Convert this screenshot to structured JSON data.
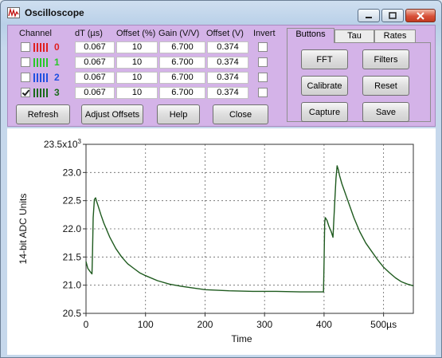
{
  "window": {
    "title": "Oscilloscope",
    "controls": [
      "minimize",
      "maximize",
      "close"
    ]
  },
  "columns": {
    "channel": "Channel",
    "dt": "dT (µs)",
    "offset_pct": "Offset (%)",
    "gain": "Gain (V/V)",
    "offset_v": "Offset (V)",
    "invert": "Invert"
  },
  "channels": [
    {
      "number": "0",
      "color": "#e02020",
      "enabled": false,
      "dt": "0.067",
      "offset_pct": "10",
      "gain": "6.700",
      "offset_v": "0.374",
      "invert": false
    },
    {
      "number": "1",
      "color": "#28c828",
      "enabled": false,
      "dt": "0.067",
      "offset_pct": "10",
      "gain": "6.700",
      "offset_v": "0.374",
      "invert": false
    },
    {
      "number": "2",
      "color": "#2050e0",
      "enabled": false,
      "dt": "0.067",
      "offset_pct": "10",
      "gain": "6.700",
      "offset_v": "0.374",
      "invert": false
    },
    {
      "number": "3",
      "color": "#1a6a1a",
      "enabled": true,
      "dt": "0.067",
      "offset_pct": "10",
      "gain": "6.700",
      "offset_v": "0.374",
      "invert": false
    }
  ],
  "buttons": {
    "refresh": "Refresh",
    "adjust_offsets": "Adjust Offsets",
    "help": "Help",
    "close": "Close"
  },
  "tabs": {
    "items": [
      "Buttons",
      "Tau",
      "Rates"
    ],
    "active": "Buttons",
    "buttons_page": {
      "fft": "FFT",
      "filters": "Filters",
      "calibrate": "Calibrate",
      "reset": "Reset",
      "capture": "Capture",
      "save": "Save"
    }
  },
  "colors": {
    "panel_bg": "#d4b3e8",
    "trace": "#1e5a1e"
  },
  "chart_data": {
    "type": "line",
    "ylabel": "14-bit ADC Units",
    "xlabel": "Time",
    "y_multiplier": "x10³",
    "ylim": [
      20.5,
      23.5
    ],
    "xlim": [
      0,
      550
    ],
    "yticks": [
      20.5,
      21.0,
      21.5,
      22.0,
      22.5,
      23.0,
      23.5
    ],
    "ytick_labels": [
      "20.5",
      "21.0",
      "21.5",
      "22.0",
      "22.5",
      "23.0",
      "23.5x10³"
    ],
    "xticks": [
      0,
      100,
      200,
      300,
      400,
      500
    ],
    "xtick_labels": [
      "0",
      "100",
      "200",
      "300",
      "400",
      "500µs"
    ],
    "grid": true,
    "series": [
      {
        "color": "#1e5a1e",
        "x": [
          0,
          3,
          7,
          10,
          11,
          12,
          14,
          16,
          18,
          20,
          25,
          30,
          40,
          50,
          60,
          70,
          80,
          90,
          100,
          120,
          140,
          160,
          180,
          200,
          240,
          280,
          320,
          360,
          398,
          399,
          400,
          401,
          402,
          405,
          408,
          412,
          415,
          418,
          420,
          422,
          424,
          426,
          430,
          440,
          450,
          460,
          470,
          480,
          490,
          500,
          510,
          520,
          530,
          540,
          550
        ],
        "y": [
          21.42,
          21.3,
          21.24,
          21.2,
          21.6,
          22.2,
          22.52,
          22.55,
          22.48,
          22.42,
          22.25,
          22.1,
          21.85,
          21.65,
          21.5,
          21.38,
          21.3,
          21.22,
          21.17,
          21.08,
          21.02,
          20.98,
          20.95,
          20.92,
          20.9,
          20.89,
          20.89,
          20.88,
          20.88,
          20.88,
          21.4,
          22.1,
          22.2,
          22.15,
          22.05,
          21.95,
          21.85,
          22.5,
          22.9,
          23.12,
          23.05,
          22.95,
          22.8,
          22.5,
          22.2,
          21.95,
          21.75,
          21.6,
          21.45,
          21.32,
          21.22,
          21.13,
          21.06,
          21.02,
          20.99
        ]
      }
    ]
  }
}
